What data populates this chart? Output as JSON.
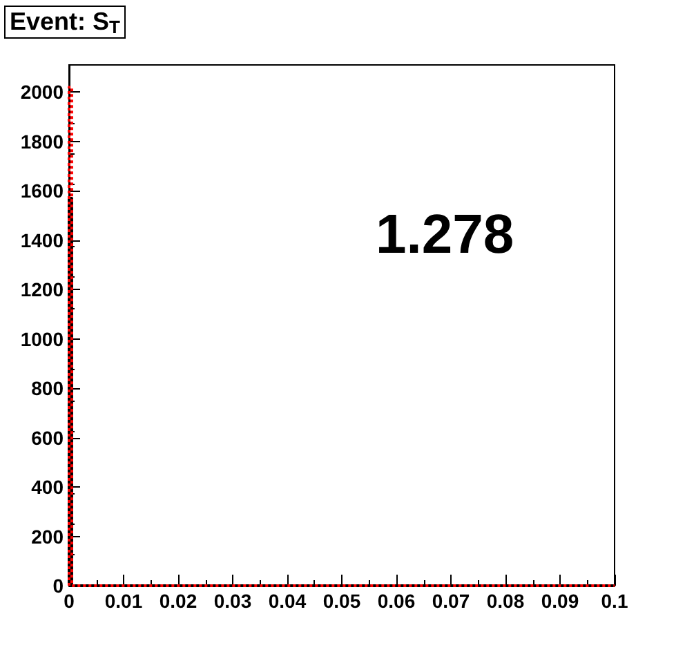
{
  "chart_data": {
    "type": "histogram",
    "title": "Event: S$_{T}$",
    "bins": [
      0,
      0.0005,
      0.1
    ],
    "series": [
      {
        "color": "#000000",
        "values": [
          1570,
          0
        ],
        "line_style": "solid"
      },
      {
        "color": "#ff0000",
        "values": [
          2020,
          0
        ],
        "line_style": "dotted"
      }
    ],
    "xlim": [
      0,
      0.1
    ],
    "xticks": [
      0,
      0.01,
      0.02,
      0.03,
      0.04,
      0.05,
      0.06,
      0.07,
      0.08,
      0.09,
      0.1
    ],
    "ylim": [
      0,
      2110
    ],
    "yticks": [
      0,
      200,
      400,
      600,
      800,
      1000,
      1200,
      1400,
      1600,
      1800,
      2000
    ],
    "annotations": [
      "1.278"
    ],
    "grid": false
  }
}
